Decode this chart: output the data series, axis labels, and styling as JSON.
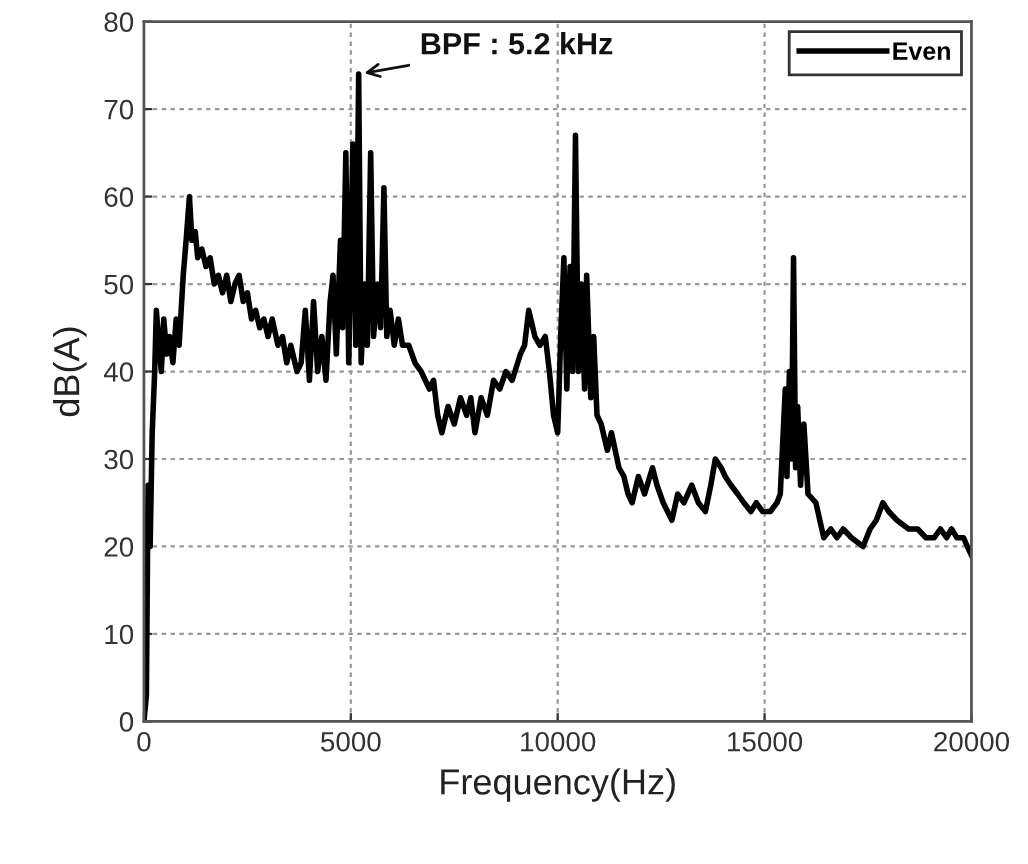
{
  "chart_data": {
    "type": "line",
    "xlabel": "Frequency(Hz)",
    "ylabel": "dB(A)",
    "x": [
      0,
      60,
      100,
      150,
      200,
      260,
      300,
      350,
      420,
      480,
      550,
      620,
      700,
      780,
      850,
      950,
      1020,
      1100,
      1160,
      1240,
      1300,
      1400,
      1500,
      1600,
      1700,
      1800,
      1900,
      2000,
      2100,
      2200,
      2300,
      2400,
      2500,
      2600,
      2700,
      2800,
      2900,
      3000,
      3100,
      3240,
      3350,
      3450,
      3550,
      3700,
      3800,
      3900,
      4000,
      4100,
      4200,
      4300,
      4400,
      4500,
      4570,
      4650,
      4750,
      4800,
      4880,
      4950,
      5050,
      5120,
      5190,
      5250,
      5330,
      5400,
      5480,
      5550,
      5650,
      5720,
      5800,
      5870,
      5950,
      6050,
      6150,
      6250,
      6400,
      6550,
      6700,
      6900,
      7000,
      7100,
      7200,
      7350,
      7500,
      7650,
      7800,
      7900,
      8000,
      8150,
      8300,
      8450,
      8600,
      8750,
      8900,
      9100,
      9200,
      9300,
      9450,
      9570,
      9700,
      9800,
      9900,
      10000,
      10080,
      10150,
      10220,
      10300,
      10360,
      10430,
      10500,
      10570,
      10650,
      10700,
      10800,
      10870,
      10950,
      11050,
      11200,
      11300,
      11480,
      11600,
      11700,
      11800,
      11950,
      12100,
      12290,
      12400,
      12550,
      12760,
      12900,
      13050,
      13240,
      13400,
      13570,
      13700,
      13810,
      13950,
      14050,
      14190,
      14350,
      14500,
      14670,
      14800,
      14950,
      15140,
      15300,
      15380,
      15450,
      15500,
      15540,
      15600,
      15650,
      15700,
      15750,
      15800,
      15870,
      15950,
      16050,
      16240,
      16430,
      16600,
      16750,
      16900,
      17100,
      17380,
      17550,
      17700,
      17860,
      18000,
      18200,
      18480,
      18700,
      18900,
      19100,
      19250,
      19400,
      19520,
      19650,
      19810,
      19900,
      20000
    ],
    "series": [
      {
        "name": "Even",
        "color": "#000000",
        "values": [
          0,
          3,
          27,
          20,
          33,
          40,
          47,
          44,
          40,
          46,
          42,
          44,
          41,
          46,
          43,
          51,
          55,
          60,
          55,
          56,
          53,
          54,
          52,
          53,
          50,
          51,
          49,
          51,
          48,
          50,
          51,
          48,
          49,
          46,
          47,
          45,
          46,
          44,
          46,
          43,
          44,
          41,
          43,
          40,
          41,
          47,
          39,
          48,
          40,
          44,
          39,
          48,
          51,
          42,
          55,
          45,
          65,
          41,
          66,
          43,
          74,
          41,
          50,
          43,
          65,
          44,
          50,
          45,
          61,
          44,
          47,
          43,
          46,
          43,
          43,
          41,
          40,
          38,
          39,
          35,
          33,
          36,
          34,
          37,
          35,
          37,
          33,
          37,
          35,
          39,
          38,
          40,
          39,
          42,
          43,
          47,
          44,
          43,
          44,
          40,
          35,
          33,
          45,
          53,
          38,
          52,
          40,
          67,
          40,
          50,
          38,
          51,
          37,
          44,
          35,
          34,
          31,
          33,
          29,
          28,
          26,
          25,
          28,
          26,
          29,
          27,
          25,
          23,
          26,
          25,
          27,
          25,
          24,
          27,
          30,
          29,
          28,
          27,
          26,
          25,
          24,
          25,
          24,
          24,
          25,
          26,
          33,
          38,
          28,
          40,
          30,
          53,
          29,
          36,
          27,
          34,
          26,
          25,
          21,
          22,
          21,
          22,
          21,
          20,
          22,
          23,
          25,
          24,
          23,
          22,
          22,
          21,
          21,
          22,
          21,
          22,
          21,
          21,
          20,
          19
        ]
      }
    ],
    "xlim": [
      0,
      20000
    ],
    "ylim": [
      0,
      80
    ],
    "xticks": [
      0,
      5000,
      10000,
      15000,
      20000
    ],
    "yticks": [
      0,
      10,
      20,
      30,
      40,
      50,
      60,
      70,
      80
    ],
    "grid": true,
    "legend": "top right",
    "line_style": "solid",
    "annotations": [
      {
        "text": "BPF : 5.2 kHz",
        "x": 5190,
        "y": 74
      }
    ]
  }
}
